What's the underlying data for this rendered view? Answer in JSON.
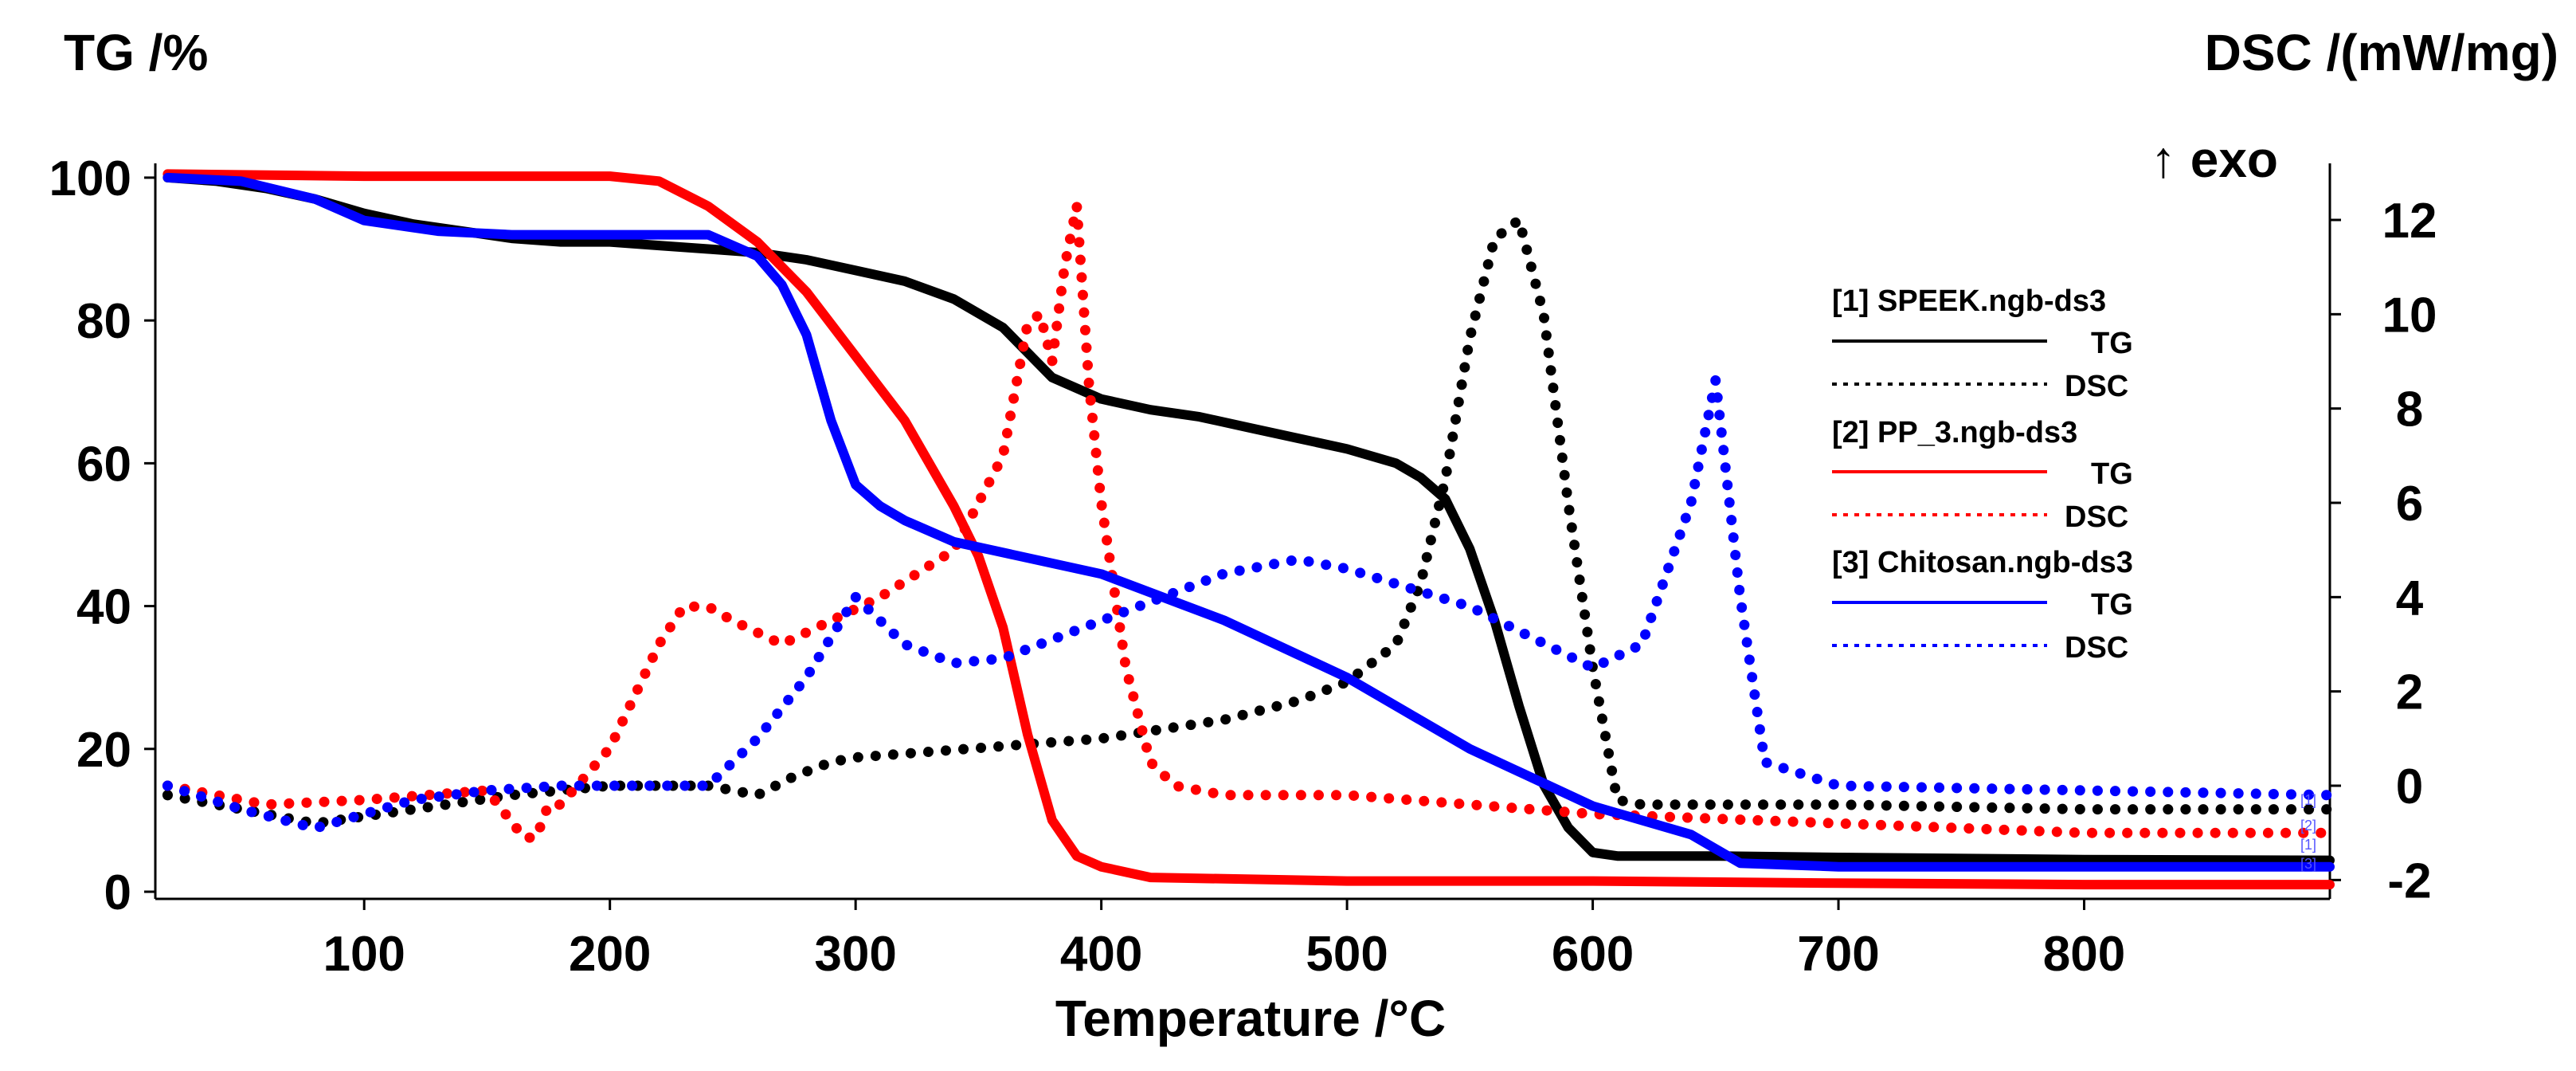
{
  "chart_data": {
    "type": "line",
    "title": "",
    "xlabel": "Temperature /°C",
    "ylabel_left": "TG /%",
    "ylabel_right": "DSC /(mW/mg)",
    "exo_label": "↑ exo",
    "xlim": [
      15,
      900
    ],
    "ylim_left": [
      -1,
      102
    ],
    "ylim_right": [
      -2.4,
      13.2
    ],
    "x_ticks": [
      100,
      200,
      300,
      400,
      500,
      600,
      700,
      800
    ],
    "y_left_ticks": [
      0,
      20,
      40,
      60,
      80,
      100
    ],
    "y_right_ticks": [
      -2,
      0,
      2,
      4,
      6,
      8,
      10,
      12
    ],
    "legend": {
      "position": "right",
      "groups": [
        {
          "name": "[1] SPEEK.ngb-ds3",
          "color": "#000000",
          "tg_label": "TG",
          "dsc_label": "DSC"
        },
        {
          "name": "[2] PP_3.ngb-ds3",
          "color": "#ff0000",
          "tg_label": "TG",
          "dsc_label": "DSC"
        },
        {
          "name": "[3] Chitosan.ngb-ds3",
          "color": "#0000ff",
          "tg_label": "TG",
          "dsc_label": "DSC"
        }
      ]
    },
    "end_markers": [
      "[1]",
      "[1]",
      "[2]",
      "[3]"
    ],
    "series": [
      {
        "name": "[1] SPEEK TG",
        "axis": "left",
        "style": "solid",
        "color": "#000000",
        "x": [
          20,
          40,
          60,
          80,
          100,
          120,
          140,
          160,
          180,
          200,
          220,
          240,
          260,
          280,
          300,
          320,
          340,
          360,
          380,
          400,
          420,
          440,
          460,
          480,
          500,
          520,
          530,
          540,
          550,
          560,
          570,
          580,
          590,
          600,
          610,
          650,
          700,
          800,
          900
        ],
        "y": [
          100,
          99.5,
          98.5,
          97,
          95,
          93.5,
          92.5,
          91.5,
          91,
          91,
          90.5,
          90,
          89.5,
          88.5,
          87,
          85.5,
          83,
          79,
          72,
          69,
          67.5,
          66.5,
          65,
          63.5,
          62,
          60,
          58,
          55,
          48,
          38,
          26,
          15,
          9,
          5.5,
          5,
          5,
          4.8,
          4.5,
          4.4
        ]
      },
      {
        "name": "[1] SPEEK DSC",
        "axis": "right",
        "style": "dotted",
        "color": "#000000",
        "x": [
          20,
          50,
          80,
          120,
          160,
          200,
          240,
          260,
          275,
          290,
          300,
          350,
          400,
          450,
          480,
          500,
          520,
          530,
          540,
          550,
          560,
          570,
          580,
          590,
          600,
          610,
          620,
          700,
          800,
          900
        ],
        "y": [
          -0.2,
          -0.5,
          -0.8,
          -0.5,
          -0.2,
          0,
          0,
          -0.2,
          0.2,
          0.5,
          0.6,
          0.8,
          1,
          1.4,
          1.8,
          2.2,
          3,
          4.3,
          6.5,
          9.5,
          11.6,
          12,
          10,
          6,
          2.5,
          -0.3,
          -0.4,
          -0.4,
          -0.5,
          -0.5
        ]
      },
      {
        "name": "[2] PP_3 TG",
        "axis": "left",
        "style": "solid",
        "color": "#ff0000",
        "x": [
          20,
          100,
          200,
          220,
          240,
          260,
          280,
          300,
          320,
          340,
          350,
          360,
          370,
          380,
          390,
          400,
          420,
          500,
          600,
          700,
          800,
          900
        ],
        "y": [
          100.5,
          100.2,
          100.2,
          99.5,
          96,
          91,
          84,
          75,
          66,
          54,
          47,
          37,
          22,
          10,
          5,
          3.5,
          2,
          1.5,
          1.5,
          1.2,
          1,
          1
        ]
      },
      {
        "name": "[2] PP_3 DSC",
        "axis": "right",
        "style": "dotted",
        "color": "#ff0000",
        "x": [
          20,
          60,
          100,
          150,
          165,
          170,
          175,
          180,
          200,
          220,
          230,
          240,
          250,
          270,
          290,
          310,
          340,
          360,
          370,
          375,
          380,
          385,
          390,
          395,
          400,
          410,
          420,
          430,
          450,
          500,
          600,
          700,
          800,
          900
        ],
        "y": [
          0,
          -0.4,
          -0.3,
          -0.1,
          -1.1,
          -1.1,
          -0.4,
          -0.4,
          0.8,
          3,
          3.8,
          3.8,
          3.5,
          3,
          3.5,
          4,
          5,
          7,
          9.8,
          10,
          9,
          11,
          12.3,
          8.5,
          6,
          2.5,
          0.5,
          0,
          -0.2,
          -0.2,
          -0.6,
          -0.8,
          -1,
          -1
        ]
      },
      {
        "name": "[3] Chitosan TG",
        "axis": "left",
        "style": "solid",
        "color": "#0000ff",
        "x": [
          20,
          50,
          80,
          100,
          130,
          160,
          200,
          240,
          260,
          270,
          280,
          290,
          300,
          310,
          320,
          340,
          400,
          450,
          500,
          550,
          600,
          640,
          660,
          700,
          800,
          900
        ],
        "y": [
          100,
          99.5,
          97,
          94,
          92.5,
          92,
          92,
          92,
          89,
          85,
          78,
          66,
          57,
          54,
          52,
          49,
          44.5,
          38,
          30,
          20,
          12,
          8,
          4,
          3.5,
          3.5,
          3.5
        ]
      },
      {
        "name": "[3] Chitosan DSC",
        "axis": "right",
        "style": "dotted",
        "color": "#0000ff",
        "x": [
          20,
          50,
          80,
          100,
          120,
          150,
          180,
          200,
          220,
          240,
          260,
          280,
          300,
          320,
          340,
          360,
          400,
          450,
          480,
          500,
          550,
          600,
          620,
          640,
          650,
          660,
          670,
          700,
          800,
          900
        ],
        "y": [
          0,
          -0.5,
          -0.9,
          -0.6,
          -0.3,
          -0.1,
          0,
          0,
          0,
          0,
          1,
          2.3,
          4,
          3,
          2.6,
          2.7,
          3.5,
          4.5,
          4.8,
          4.6,
          3.8,
          2.5,
          3,
          6,
          8.6,
          4,
          0.5,
          0,
          -0.1,
          -0.2
        ]
      }
    ]
  }
}
